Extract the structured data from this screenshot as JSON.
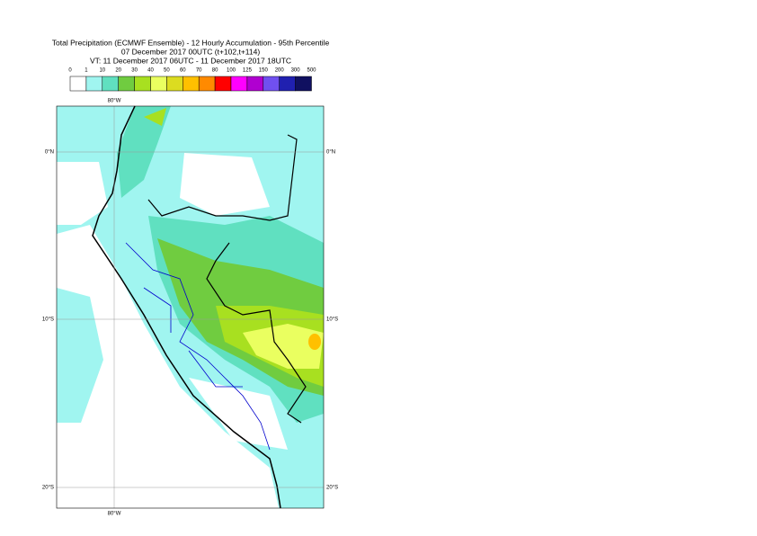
{
  "header": {
    "lines": [
      "Total Precipitation (ECMWF Ensemble) - 12 Hourly Accumulation - 95th Percentile",
      "07 December 2017 00UTC (t+102,t+114)",
      "VT: 11 December 2017 06UTC - 11 December 2017 18UTC"
    ]
  },
  "legend": {
    "labels": [
      "0",
      "1",
      "10",
      "20",
      "30",
      "40",
      "50",
      "60",
      "70",
      "80",
      "100",
      "125",
      "150",
      "200",
      "300",
      "500"
    ],
    "colors": [
      "#ffffff",
      "#a0f5f0",
      "#60e0c0",
      "#70cc40",
      "#a8e020",
      "#eaff60",
      "#dcdc20",
      "#ffc000",
      "#ff8a00",
      "#ff0000",
      "#ff00ff",
      "#b000d0",
      "#7050f0",
      "#2020b0",
      "#101060"
    ]
  },
  "map": {
    "lat_labels": [
      "0°N",
      "10°S",
      "20°S"
    ],
    "lon_labels": [
      "80°W"
    ]
  }
}
